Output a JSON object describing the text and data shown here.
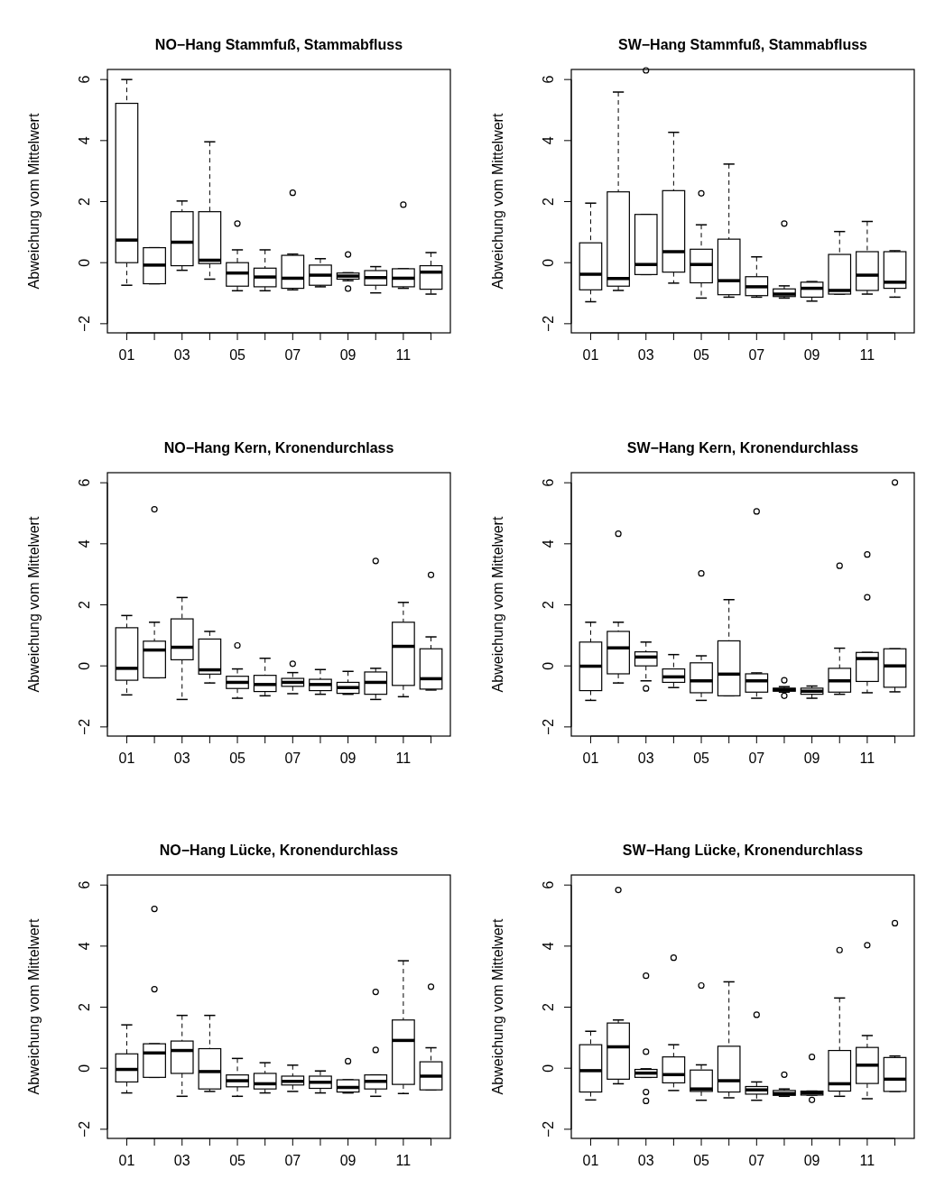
{
  "chart_data": [
    {
      "type": "box",
      "title": "NO−Hang Stammfuß, Stammabfluss",
      "ylabel": "Abweichung vom Mittelwert",
      "categories": [
        "01",
        null,
        "03",
        null,
        "05",
        null,
        "07",
        null,
        "09",
        null,
        "11",
        null
      ],
      "ylim": [
        -2.3,
        6.33
      ],
      "yticks": [
        -2,
        0,
        2,
        4,
        6
      ],
      "boxes": [
        {
          "low": -0.74,
          "q1": 0,
          "median": 0.74,
          "q3": 5.22,
          "high": 6.0
        },
        {
          "low": -0.69,
          "q1": -0.69,
          "median": -0.08,
          "q3": 0.49,
          "high": 0.49
        },
        {
          "low": -0.25,
          "q1": -0.1,
          "median": 0.67,
          "q3": 1.67,
          "high": 2.02
        },
        {
          "low": -0.54,
          "q1": -0.03,
          "median": 0.08,
          "q3": 1.67,
          "high": 3.96
        },
        {
          "low": -0.92,
          "q1": -0.77,
          "median": -0.34,
          "q3": 0,
          "high": 0.42,
          "outliers": [
            1.28
          ]
        },
        {
          "low": -0.92,
          "q1": -0.79,
          "median": -0.47,
          "q3": -0.18,
          "high": 0.42
        },
        {
          "low": -0.89,
          "q1": -0.84,
          "median": -0.51,
          "q3": 0.24,
          "high": 0.28,
          "outliers": [
            2.29
          ]
        },
        {
          "low": -0.79,
          "q1": -0.74,
          "median": -0.41,
          "q3": -0.08,
          "high": 0.13
        },
        {
          "low": -0.59,
          "q1": -0.54,
          "median": -0.44,
          "q3": -0.34,
          "high": -0.33,
          "outliers": [
            0.27,
            -0.85
          ]
        },
        {
          "low": -0.99,
          "q1": -0.74,
          "median": -0.49,
          "q3": -0.26,
          "high": -0.13
        },
        {
          "low": -0.84,
          "q1": -0.79,
          "median": -0.51,
          "q3": -0.2,
          "high": -0.2,
          "outliers": [
            1.9
          ]
        },
        {
          "low": -1.03,
          "q1": -0.87,
          "median": -0.31,
          "q3": -0.1,
          "high": 0.33
        }
      ]
    },
    {
      "type": "box",
      "title": "SW−Hang Stammfuß, Stammabfluss",
      "ylabel": "Abweichung vom Mittelwert",
      "categories": [
        "01",
        null,
        "03",
        null,
        "05",
        null,
        "07",
        null,
        "09",
        null,
        "11",
        null
      ],
      "ylim": [
        -2.3,
        6.33
      ],
      "yticks": [
        -2,
        0,
        2,
        4,
        6
      ],
      "boxes": [
        {
          "low": -1.28,
          "q1": -0.89,
          "median": -0.38,
          "q3": 0.65,
          "high": 1.95
        },
        {
          "low": -0.91,
          "q1": -0.77,
          "median": -0.52,
          "q3": 2.32,
          "high": 5.59
        },
        {
          "low": -0.39,
          "q1": -0.39,
          "median": -0.06,
          "q3": 1.58,
          "high": 1.58,
          "outliers": [
            6.3
          ]
        },
        {
          "low": -0.67,
          "q1": -0.31,
          "median": 0.36,
          "q3": 2.36,
          "high": 4.27
        },
        {
          "low": -1.16,
          "q1": -0.66,
          "median": -0.06,
          "q3": 0.44,
          "high": 1.24,
          "outliers": [
            2.27
          ]
        },
        {
          "low": -1.13,
          "q1": -1.05,
          "median": -0.59,
          "q3": 0.77,
          "high": 3.23
        },
        {
          "low": -1.13,
          "q1": -1.08,
          "median": -0.79,
          "q3": -0.46,
          "high": 0.19
        },
        {
          "low": -1.16,
          "q1": -1.11,
          "median": -1.03,
          "q3": -0.86,
          "high": -0.76,
          "outliers": [
            1.28
          ]
        },
        {
          "low": -1.26,
          "q1": -1.13,
          "median": -0.84,
          "q3": -0.64,
          "high": -0.62
        },
        {
          "low": -1.03,
          "q1": -1.03,
          "median": -0.91,
          "q3": 0.27,
          "high": 1.02
        },
        {
          "low": -1.03,
          "q1": -0.91,
          "median": -0.41,
          "q3": 0.36,
          "high": 1.35
        },
        {
          "low": -1.13,
          "q1": -0.84,
          "median": -0.64,
          "q3": 0.36,
          "high": 0.39
        }
      ]
    },
    {
      "type": "box",
      "title": "NO−Hang Kern, Kronendurchlass",
      "ylabel": "Abweichung vom Mittelwert",
      "categories": [
        "01",
        null,
        "03",
        null,
        "05",
        null,
        "07",
        null,
        "09",
        null,
        "11",
        null
      ],
      "ylim": [
        -2.3,
        6.33
      ],
      "yticks": [
        -2,
        0,
        2,
        4,
        6
      ],
      "boxes": [
        {
          "low": -0.95,
          "q1": -0.47,
          "median": -0.08,
          "q3": 1.25,
          "high": 1.65
        },
        {
          "low": -0.39,
          "q1": -0.39,
          "median": 0.52,
          "q3": 0.81,
          "high": 1.43,
          "outliers": [
            5.13
          ]
        },
        {
          "low": -1.1,
          "q1": 0.2,
          "median": 0.61,
          "q3": 1.54,
          "high": 2.24
        },
        {
          "low": -0.56,
          "q1": -0.27,
          "median": -0.13,
          "q3": 0.88,
          "high": 1.13
        },
        {
          "low": -1.06,
          "q1": -0.74,
          "median": -0.54,
          "q3": -0.34,
          "high": -0.1,
          "outliers": [
            0.67
          ]
        },
        {
          "low": -0.98,
          "q1": -0.84,
          "median": -0.61,
          "q3": -0.31,
          "high": 0.25
        },
        {
          "low": -0.91,
          "q1": -0.67,
          "median": -0.54,
          "q3": -0.41,
          "high": -0.22,
          "outliers": [
            0.07
          ]
        },
        {
          "low": -0.93,
          "q1": -0.81,
          "median": -0.61,
          "q3": -0.44,
          "high": -0.12
        },
        {
          "low": -0.93,
          "q1": -0.9,
          "median": -0.71,
          "q3": -0.54,
          "high": -0.18
        },
        {
          "low": -1.1,
          "q1": -0.93,
          "median": -0.54,
          "q3": -0.2,
          "high": -0.08,
          "outliers": [
            3.44
          ]
        },
        {
          "low": -1.01,
          "q1": -0.64,
          "median": 0.64,
          "q3": 1.43,
          "high": 2.08
        },
        {
          "low": -0.79,
          "q1": -0.76,
          "median": -0.42,
          "q3": 0.56,
          "high": 0.95,
          "outliers": [
            2.98
          ]
        }
      ]
    },
    {
      "type": "box",
      "title": "SW−Hang Kern, Kronendurchlass",
      "ylabel": "Abweichung vom Mittelwert",
      "categories": [
        "01",
        null,
        "03",
        null,
        "05",
        null,
        "07",
        null,
        "09",
        null,
        "11",
        null
      ],
      "ylim": [
        -2.3,
        6.33
      ],
      "yticks": [
        -2,
        0,
        2,
        4,
        6
      ],
      "boxes": [
        {
          "low": -1.13,
          "q1": -0.81,
          "median": -0.01,
          "q3": 0.78,
          "high": 1.43
        },
        {
          "low": -0.56,
          "q1": -0.26,
          "median": 0.59,
          "q3": 1.13,
          "high": 1.43,
          "outliers": [
            4.33
          ]
        },
        {
          "low": -0.49,
          "q1": 0,
          "median": 0.29,
          "q3": 0.46,
          "high": 0.78,
          "outliers": [
            -0.74
          ]
        },
        {
          "low": -0.71,
          "q1": -0.54,
          "median": -0.36,
          "q3": -0.1,
          "high": 0.37
        },
        {
          "low": -1.13,
          "q1": -0.88,
          "median": -0.49,
          "q3": 0.1,
          "high": 0.33,
          "outliers": [
            3.03
          ]
        },
        {
          "low": -0.98,
          "q1": -0.98,
          "median": -0.27,
          "q3": 0.82,
          "high": 2.17
        },
        {
          "low": -1.06,
          "q1": -0.86,
          "median": -0.49,
          "q3": -0.26,
          "high": -0.23,
          "outliers": [
            5.06
          ]
        },
        {
          "low": -0.86,
          "q1": -0.83,
          "median": -0.78,
          "q3": -0.73,
          "high": -0.68,
          "outliers": [
            -0.47,
            -0.98
          ]
        },
        {
          "low": -1.06,
          "q1": -0.93,
          "median": -0.83,
          "q3": -0.73,
          "high": -0.66
        },
        {
          "low": -0.93,
          "q1": -0.86,
          "median": -0.49,
          "q3": -0.08,
          "high": 0.58,
          "outliers": [
            3.28
          ]
        },
        {
          "low": -0.88,
          "q1": -0.51,
          "median": 0.24,
          "q3": 0.44,
          "high": 0.44,
          "outliers": [
            3.65,
            2.25
          ]
        },
        {
          "low": -0.85,
          "q1": -0.7,
          "median": 0,
          "q3": 0.56,
          "high": 0.56,
          "outliers": [
            6.01
          ]
        }
      ]
    },
    {
      "type": "box",
      "title": "NO−Hang Lücke, Kronendurchlass",
      "ylabel": "Abweichung vom Mittelwert",
      "categories": [
        "01",
        null,
        "03",
        null,
        "05",
        null,
        "07",
        null,
        "09",
        null,
        "11",
        null
      ],
      "ylim": [
        -2.3,
        6.33
      ],
      "yticks": [
        -2,
        0,
        2,
        4,
        6
      ],
      "boxes": [
        {
          "low": -0.81,
          "q1": -0.45,
          "median": -0.04,
          "q3": 0.47,
          "high": 1.42
        },
        {
          "low": -0.3,
          "q1": -0.3,
          "median": 0.5,
          "q3": 0.8,
          "high": 0.8,
          "outliers": [
            5.22,
            2.59
          ]
        },
        {
          "low": -0.92,
          "q1": -0.17,
          "median": 0.58,
          "q3": 0.89,
          "high": 1.73
        },
        {
          "low": -0.76,
          "q1": -0.68,
          "median": -0.11,
          "q3": 0.64,
          "high": 1.73
        },
        {
          "low": -0.92,
          "q1": -0.61,
          "median": -0.41,
          "q3": -0.22,
          "high": 0.32
        },
        {
          "low": -0.81,
          "q1": -0.68,
          "median": -0.51,
          "q3": -0.17,
          "high": 0.18
        },
        {
          "low": -0.76,
          "q1": -0.55,
          "median": -0.43,
          "q3": -0.26,
          "high": 0.1
        },
        {
          "low": -0.81,
          "q1": -0.66,
          "median": -0.46,
          "q3": -0.26,
          "high": -0.09
        },
        {
          "low": -0.81,
          "q1": -0.78,
          "median": -0.63,
          "q3": -0.38,
          "high": -0.38,
          "outliers": [
            0.23
          ]
        },
        {
          "low": -0.92,
          "q1": -0.68,
          "median": -0.43,
          "q3": -0.22,
          "high": -0.22,
          "outliers": [
            2.5,
            0.6
          ]
        },
        {
          "low": -0.83,
          "q1": -0.53,
          "median": 0.91,
          "q3": 1.58,
          "high": 3.52
        },
        {
          "low": -0.71,
          "q1": -0.71,
          "median": -0.26,
          "q3": 0.21,
          "high": 0.67,
          "outliers": [
            2.67
          ]
        }
      ]
    },
    {
      "type": "box",
      "title": "SW−Hang Lücke, Kronendurchlass",
      "ylabel": "Abweichung vom Mittelwert",
      "categories": [
        "01",
        null,
        "03",
        null,
        "05",
        null,
        "07",
        null,
        "09",
        null,
        "11",
        null
      ],
      "ylim": [
        -2.3,
        6.33
      ],
      "yticks": [
        -2,
        0,
        2,
        4,
        6
      ],
      "boxes": [
        {
          "low": -1.04,
          "q1": -0.78,
          "median": -0.08,
          "q3": 0.77,
          "high": 1.21
        },
        {
          "low": -0.51,
          "q1": -0.36,
          "median": 0.7,
          "q3": 1.48,
          "high": 1.58,
          "outliers": [
            5.84
          ]
        },
        {
          "low": -0.3,
          "q1": -0.3,
          "median": -0.16,
          "q3": -0.04,
          "high": -0.02,
          "outliers": [
            3.03,
            0.54,
            -0.78,
            -1.07
          ]
        },
        {
          "low": -0.73,
          "q1": -0.48,
          "median": -0.21,
          "q3": 0.37,
          "high": 0.77,
          "outliers": [
            3.62
          ]
        },
        {
          "low": -1.05,
          "q1": -0.76,
          "median": -0.68,
          "q3": -0.06,
          "high": 0.11,
          "outliers": [
            2.71
          ]
        },
        {
          "low": -0.97,
          "q1": -0.78,
          "median": -0.41,
          "q3": 0.72,
          "high": 2.83
        },
        {
          "low": -1.05,
          "q1": -0.85,
          "median": -0.71,
          "q3": -0.6,
          "high": -0.45,
          "outliers": [
            1.75
          ]
        },
        {
          "low": -0.92,
          "q1": -0.89,
          "median": -0.83,
          "q3": -0.73,
          "high": -0.68,
          "outliers": [
            -0.21
          ]
        },
        {
          "low": -0.88,
          "q1": -0.88,
          "median": -0.81,
          "q3": -0.75,
          "high": -0.75,
          "outliers": [
            0.37,
            -1.04
          ]
        },
        {
          "low": -0.92,
          "q1": -0.75,
          "median": -0.51,
          "q3": 0.58,
          "high": 2.3,
          "outliers": [
            3.87
          ]
        },
        {
          "low": -1.0,
          "q1": -0.5,
          "median": 0.1,
          "q3": 0.68,
          "high": 1.07,
          "outliers": [
            4.03
          ]
        },
        {
          "low": -0.76,
          "q1": -0.76,
          "median": -0.36,
          "q3": 0.35,
          "high": 0.4,
          "outliers": [
            4.75
          ]
        }
      ]
    }
  ]
}
